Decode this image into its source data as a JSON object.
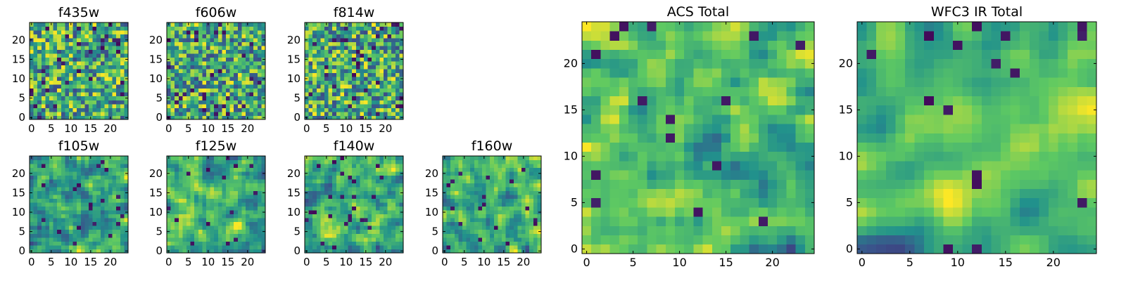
{
  "colormap": "viridis",
  "chart_data": [
    {
      "type": "heatmap",
      "title": "f435w",
      "x_ticks": [
        "0",
        "5",
        "10",
        "15",
        "20"
      ],
      "y_ticks": [
        "0",
        "5",
        "10",
        "15",
        "20"
      ],
      "xlim": [
        -0.5,
        24.5
      ],
      "ylim": [
        -0.5,
        24.5
      ],
      "grid": false,
      "grid_size": 25
    },
    {
      "type": "heatmap",
      "title": "f606w",
      "x_ticks": [
        "0",
        "5",
        "10",
        "15",
        "20"
      ],
      "y_ticks": [
        "0",
        "5",
        "10",
        "15",
        "20"
      ],
      "xlim": [
        -0.5,
        24.5
      ],
      "ylim": [
        -0.5,
        24.5
      ],
      "grid": false,
      "grid_size": 25
    },
    {
      "type": "heatmap",
      "title": "f814w",
      "x_ticks": [
        "0",
        "5",
        "10",
        "15",
        "20"
      ],
      "y_ticks": [
        "0",
        "5",
        "10",
        "15",
        "20"
      ],
      "xlim": [
        -0.5,
        24.5
      ],
      "ylim": [
        -0.5,
        24.5
      ],
      "grid": false,
      "grid_size": 25
    },
    {
      "type": "heatmap",
      "title": "f105w",
      "x_ticks": [
        "0",
        "5",
        "10",
        "15",
        "20"
      ],
      "y_ticks": [
        "0",
        "5",
        "10",
        "15",
        "20"
      ],
      "xlim": [
        -0.5,
        24.5
      ],
      "ylim": [
        -0.5,
        24.5
      ],
      "grid": false,
      "grid_size": 25
    },
    {
      "type": "heatmap",
      "title": "f125w",
      "x_ticks": [
        "0",
        "5",
        "10",
        "15",
        "20"
      ],
      "y_ticks": [
        "0",
        "5",
        "10",
        "15",
        "20"
      ],
      "xlim": [
        -0.5,
        24.5
      ],
      "ylim": [
        -0.5,
        24.5
      ],
      "grid": false,
      "grid_size": 25
    },
    {
      "type": "heatmap",
      "title": "f140w",
      "x_ticks": [
        "0",
        "5",
        "10",
        "15",
        "20"
      ],
      "y_ticks": [
        "0",
        "5",
        "10",
        "15",
        "20"
      ],
      "xlim": [
        -0.5,
        24.5
      ],
      "ylim": [
        -0.5,
        24.5
      ],
      "grid": false,
      "grid_size": 25
    },
    {
      "type": "heatmap",
      "title": "f160w",
      "x_ticks": [
        "0",
        "5",
        "10",
        "15",
        "20"
      ],
      "y_ticks": [
        "0",
        "5",
        "10",
        "15",
        "20"
      ],
      "xlim": [
        -0.5,
        24.5
      ],
      "ylim": [
        -0.5,
        24.5
      ],
      "grid": false,
      "grid_size": 25
    },
    {
      "type": "heatmap",
      "title": "ACS Total",
      "x_ticks": [
        "0",
        "5",
        "10",
        "15",
        "20"
      ],
      "y_ticks": [
        "0",
        "5",
        "10",
        "15",
        "20"
      ],
      "xlim": [
        -0.5,
        24.5
      ],
      "ylim": [
        -0.5,
        24.5
      ],
      "grid": false,
      "grid_size": 25
    },
    {
      "type": "heatmap",
      "title": "WFC3 IR Total",
      "x_ticks": [
        "0",
        "5",
        "10",
        "15",
        "20"
      ],
      "y_ticks": [
        "0",
        "5",
        "10",
        "15",
        "20"
      ],
      "xlim": [
        -0.5,
        24.5
      ],
      "ylim": [
        -0.5,
        24.5
      ],
      "grid": false,
      "grid_size": 25
    }
  ]
}
